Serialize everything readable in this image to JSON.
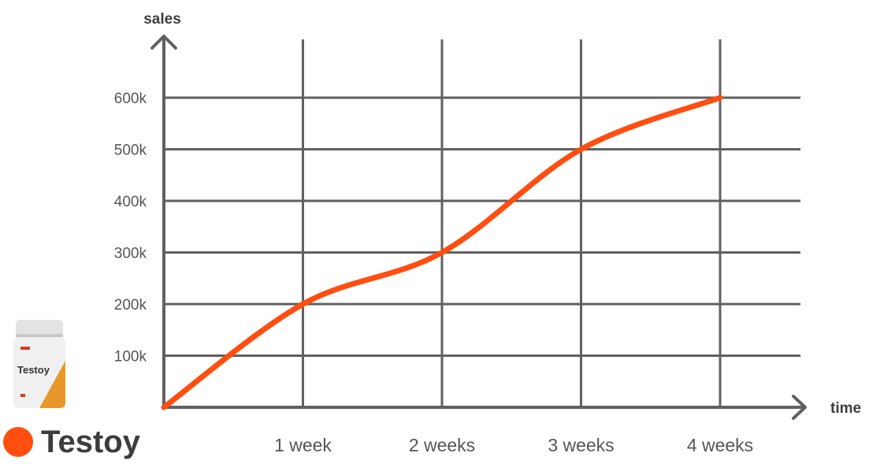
{
  "chart_data": {
    "type": "line",
    "x_categories": [
      "",
      "1 week",
      "2 weeks",
      "3 weeks",
      "4 weeks"
    ],
    "y_ticks": [
      100,
      200,
      300,
      400,
      500,
      600
    ],
    "y_tick_labels": [
      "100k",
      "200k",
      "300k",
      "400k",
      "500k",
      "600k"
    ],
    "ylim": [
      0,
      600
    ],
    "series": [
      {
        "name": "Testoy",
        "values": [
          0,
          200,
          300,
          500,
          600
        ],
        "color": "#ff4e10"
      }
    ],
    "xlabel": "time",
    "ylabel": "sales",
    "grid": true,
    "legend_position": "bottom-left"
  },
  "product": {
    "brand_text": "Testoy",
    "icon": "supplement-bottle-icon"
  },
  "colors": {
    "line": "#ff4e10",
    "grid": "#606060",
    "axis": "#606060",
    "text": "#555555"
  }
}
